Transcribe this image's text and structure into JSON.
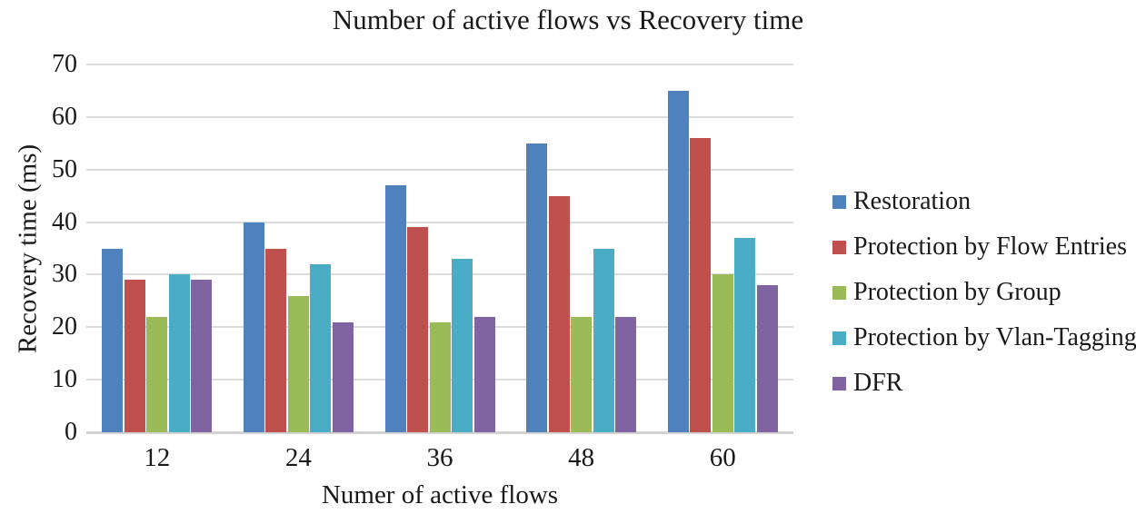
{
  "chart_data": {
    "type": "bar",
    "title": "Number of active flows vs Recovery time",
    "xlabel": "Numer of active flows",
    "ylabel": "Recovery time (ms)",
    "categories": [
      "12",
      "24",
      "36",
      "48",
      "60"
    ],
    "series": [
      {
        "name": "Restoration",
        "color": "#4F81BD",
        "values": [
          35,
          40,
          47,
          55,
          65
        ]
      },
      {
        "name": "Protection by Flow Entries",
        "color": "#C0504D",
        "values": [
          29,
          35,
          39,
          45,
          56
        ]
      },
      {
        "name": "Protection by Group",
        "color": "#9BBB59",
        "values": [
          22,
          26,
          21,
          22,
          30
        ]
      },
      {
        "name": "Protection by Vlan-Tagging",
        "color": "#4BACC6",
        "values": [
          30,
          32,
          33,
          35,
          37
        ]
      },
      {
        "name": "DFR",
        "color": "#8064A2",
        "values": [
          29,
          21,
          22,
          22,
          28
        ]
      }
    ],
    "ylim": [
      0,
      70
    ],
    "ytick_step": 10,
    "ytick_labels": [
      "0",
      "10",
      "20",
      "30",
      "40",
      "50",
      "60",
      "70"
    ],
    "grid": true,
    "legend_position": "right",
    "gridline_color": "#DCDCDC",
    "axis_line_color": "#D2D2D2",
    "text_color": "#1A1A1A",
    "background_color": "#FFFFFF"
  }
}
